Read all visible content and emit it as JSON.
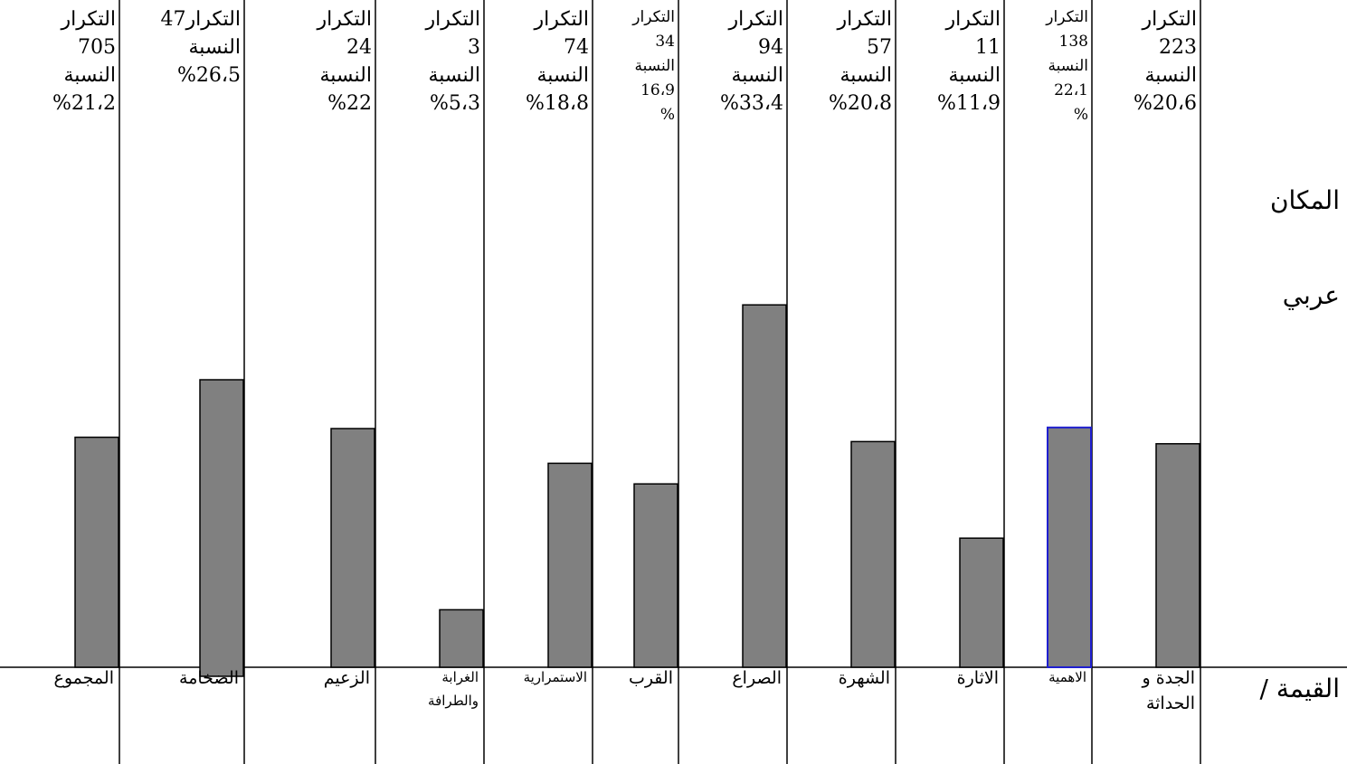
{
  "row_labels": {
    "place": "المكان",
    "arab": "عربي",
    "value": "القيمة /"
  },
  "chart_data": {
    "type": "bar",
    "title": "",
    "xlabel": "",
    "ylabel": "",
    "grid": false,
    "legend": "none",
    "bar_color": "#808080",
    "highlight_color": "#1f1fd0",
    "ylim": [
      0,
      35
    ],
    "categories": [
      {
        "id": "novelty",
        "label": "الجدة و\nالحداثة",
        "header": "التكرار\n223\nالنسبة\n%20،6",
        "value": 20.6
      },
      {
        "id": "importance",
        "label": "الاهمية",
        "header": "التكرار\n138\nالنسبة\n22،1\n%",
        "value": 22.1,
        "highlight": true
      },
      {
        "id": "excitement",
        "label": "الاثارة",
        "header": "التكرار\n11\nالنسبة\n%11،9",
        "value": 11.9
      },
      {
        "id": "fame",
        "label": "الشهرة",
        "header": "التكرار\n57\nالنسبة\n%20،8",
        "value": 20.8
      },
      {
        "id": "conflict",
        "label": "الصراع",
        "header": "التكرار\n94\nالنسبة\n%33،4",
        "value": 33.4
      },
      {
        "id": "proximity",
        "label": "القرب",
        "header": "التكرار\n34\nالنسبة\n16،9\n%",
        "value": 16.9
      },
      {
        "id": "continuity",
        "label": "الاستمرارية",
        "header": "التكرار\n74\nالنسبة\n%18،8",
        "value": 18.8
      },
      {
        "id": "oddity",
        "label": "الغرابة\nوالطرافة",
        "header": "التكرار\n3\nالنسبة\n%5،3",
        "value": 5.3
      },
      {
        "id": "leader",
        "label": "الزعيم",
        "header": "التكرار\n24\nالنسبة\n%22",
        "value": 22
      },
      {
        "id": "magnitude",
        "label": "الضخامة",
        "header": "التكرار47\nالنسبة\n%26،5",
        "value": 26.5
      },
      {
        "id": "total",
        "label": "المجموع",
        "header": "التكرار\n705\nالنسبة\n%21،2",
        "value": 21.2
      }
    ]
  }
}
